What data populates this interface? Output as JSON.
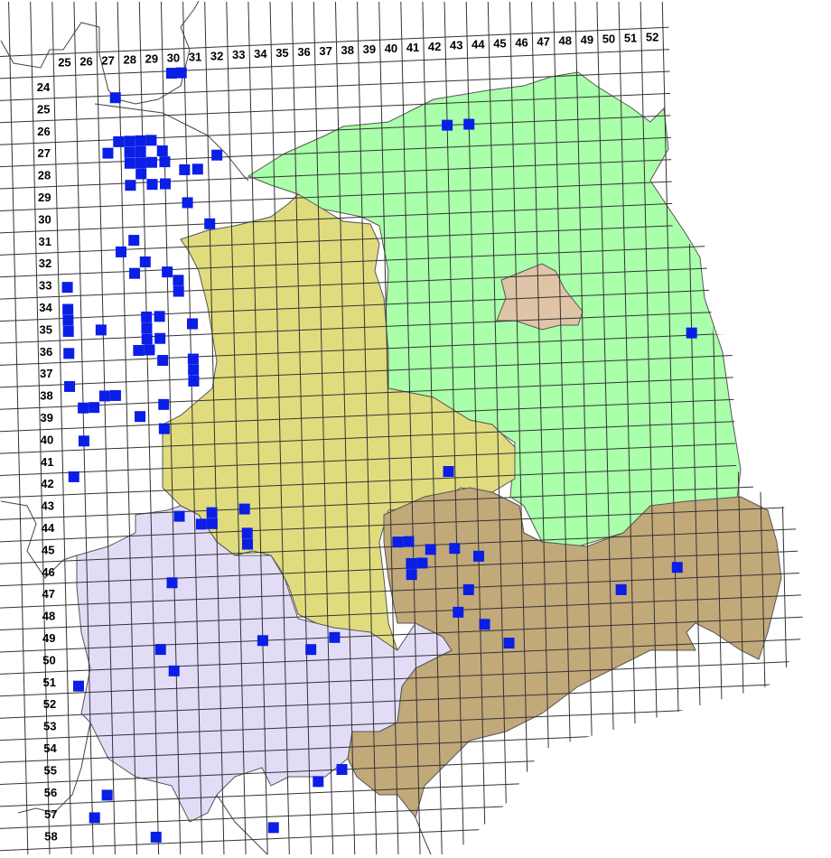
{
  "map": {
    "column_labels": [
      "25",
      "26",
      "27",
      "28",
      "29",
      "30",
      "31",
      "32",
      "33",
      "34",
      "35",
      "36",
      "37",
      "38",
      "39",
      "40",
      "41",
      "42",
      "43",
      "44",
      "45",
      "46",
      "47",
      "48",
      "49",
      "50",
      "51",
      "52"
    ],
    "row_labels": [
      "24",
      "25",
      "26",
      "27",
      "28",
      "29",
      "30",
      "31",
      "32",
      "33",
      "34",
      "35",
      "36",
      "37",
      "38",
      "39",
      "40",
      "41",
      "42",
      "43",
      "44",
      "45",
      "46",
      "47",
      "48",
      "49",
      "50",
      "51",
      "52",
      "53",
      "54",
      "55",
      "56",
      "57",
      "58"
    ],
    "regions": [
      {
        "id": "green",
        "color": "#aaffaa"
      },
      {
        "id": "yellow",
        "color": "#e0dc7e"
      },
      {
        "id": "purple",
        "color": "#e3dcf7"
      },
      {
        "id": "brown",
        "color": "#c2a97a"
      },
      {
        "id": "berlin",
        "color": "#dfc4a7"
      }
    ],
    "marker_color": "#0a1ee6",
    "grid_color": "#333333",
    "markers": [
      [
        29.9,
        23.6
      ],
      [
        30.35,
        23.6
      ],
      [
        27.3,
        24.6
      ],
      [
        27.4,
        26.6
      ],
      [
        27.9,
        26.6
      ],
      [
        28.4,
        26.6
      ],
      [
        28.9,
        26.6
      ],
      [
        26.9,
        27.1
      ],
      [
        27.9,
        27.1
      ],
      [
        28.4,
        27.1
      ],
      [
        29.4,
        27.1
      ],
      [
        27.9,
        27.6
      ],
      [
        28.4,
        27.6
      ],
      [
        28.9,
        27.6
      ],
      [
        29.5,
        27.6
      ],
      [
        31.9,
        27.4
      ],
      [
        28.4,
        28.1
      ],
      [
        30.4,
        28.0
      ],
      [
        31.0,
        28.0
      ],
      [
        27.9,
        28.6
      ],
      [
        28.9,
        28.6
      ],
      [
        29.5,
        28.6
      ],
      [
        30.5,
        29.5
      ],
      [
        31.5,
        30.5
      ],
      [
        28.0,
        31.1
      ],
      [
        27.4,
        31.6
      ],
      [
        28.5,
        32.1
      ],
      [
        28.0,
        32.6
      ],
      [
        29.5,
        32.6
      ],
      [
        24.9,
        33.1
      ],
      [
        30.0,
        33.0
      ],
      [
        30.0,
        33.5
      ],
      [
        24.9,
        34.1
      ],
      [
        24.9,
        34.6
      ],
      [
        24.9,
        35.1
      ],
      [
        28.5,
        34.6
      ],
      [
        29.1,
        34.6
      ],
      [
        26.4,
        35.1
      ],
      [
        28.5,
        35.1
      ],
      [
        30.6,
        35.0
      ],
      [
        28.5,
        35.6
      ],
      [
        29.1,
        35.6
      ],
      [
        24.9,
        36.1
      ],
      [
        28.1,
        36.1
      ],
      [
        28.6,
        36.1
      ],
      [
        29.2,
        36.6
      ],
      [
        30.6,
        36.6
      ],
      [
        30.6,
        37.1
      ],
      [
        30.6,
        37.6
      ],
      [
        24.9,
        37.6
      ],
      [
        26.5,
        38.1
      ],
      [
        27.0,
        38.1
      ],
      [
        25.5,
        38.6
      ],
      [
        26.0,
        38.6
      ],
      [
        29.2,
        38.6
      ],
      [
        28.1,
        39.1
      ],
      [
        29.2,
        39.7
      ],
      [
        25.5,
        40.1
      ],
      [
        25.0,
        41.7
      ],
      [
        42.2,
        42.2
      ],
      [
        29.8,
        43.7
      ],
      [
        32.8,
        43.5
      ],
      [
        30.8,
        44.1
      ],
      [
        31.3,
        43.6
      ],
      [
        31.3,
        44.1
      ],
      [
        32.9,
        44.6
      ],
      [
        32.9,
        45.1
      ],
      [
        39.8,
        45.3
      ],
      [
        40.3,
        45.3
      ],
      [
        40.4,
        46.3
      ],
      [
        40.9,
        46.3
      ],
      [
        40.4,
        46.8
      ],
      [
        41.3,
        45.7
      ],
      [
        42.4,
        45.7
      ],
      [
        43.5,
        46.1
      ],
      [
        29.4,
        46.7
      ],
      [
        43.0,
        47.6
      ],
      [
        42.5,
        48.6
      ],
      [
        43.7,
        49.2
      ],
      [
        44.8,
        50.1
      ],
      [
        50.0,
        47.9
      ],
      [
        52.6,
        47.0
      ],
      [
        53.5,
        36.4
      ],
      [
        42.5,
        26.5
      ],
      [
        43.5,
        26.5
      ],
      [
        28.8,
        49.7
      ],
      [
        29.4,
        50.7
      ],
      [
        33.5,
        49.5
      ],
      [
        36.8,
        49.5
      ],
      [
        35.7,
        50.0
      ],
      [
        25.0,
        51.2
      ],
      [
        37.0,
        55.5
      ],
      [
        35.9,
        56.0
      ],
      [
        26.2,
        56.2
      ],
      [
        25.6,
        57.2
      ],
      [
        28.4,
        58.2
      ],
      [
        33.8,
        58.0
      ]
    ]
  }
}
